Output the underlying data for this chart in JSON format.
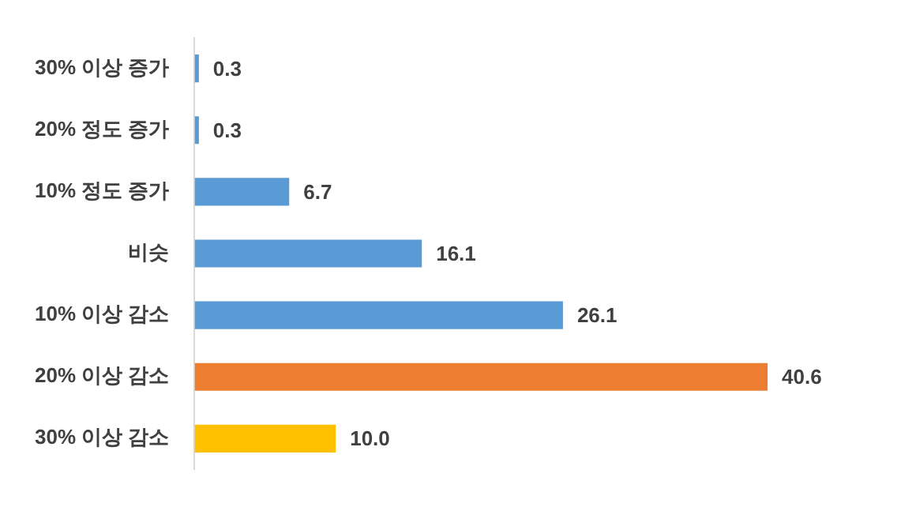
{
  "chart_data": {
    "type": "bar",
    "orientation": "horizontal",
    "categories": [
      "30% 이상 증가",
      "20% 정도 증가",
      "10% 정도 증가",
      "비슷",
      "10% 이상 감소",
      "20% 이상 감소",
      "30% 이상 감소"
    ],
    "values": [
      0.3,
      0.3,
      6.7,
      16.1,
      26.1,
      40.6,
      10.0
    ],
    "colors": [
      "#5b9bd5",
      "#5b9bd5",
      "#5b9bd5",
      "#5b9bd5",
      "#5b9bd5",
      "#ed7d31",
      "#ffc000"
    ],
    "value_labels": [
      "0.3",
      "0.3",
      "6.7",
      "16.1",
      "26.1",
      "40.6",
      "10.0"
    ],
    "grid": false,
    "legend": false,
    "tick_labels": "y"
  }
}
